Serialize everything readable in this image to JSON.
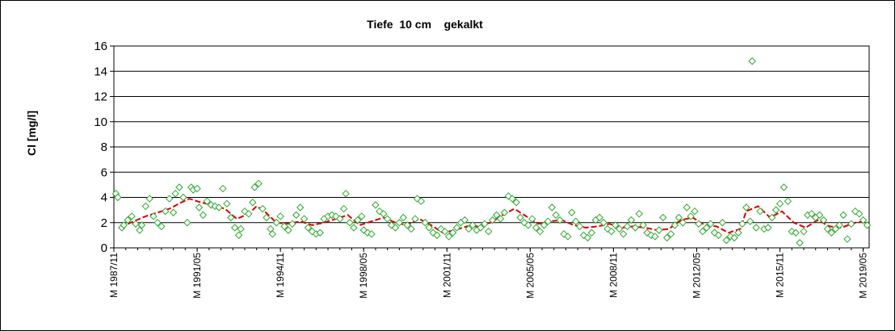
{
  "chart_data": {
    "type": "scatter",
    "title": "Tiefe  10 cm    gekalkt",
    "xlabel": "",
    "ylabel": "Cl [mg/l]",
    "ylim": [
      0,
      16
    ],
    "yticks": [
      0,
      2,
      4,
      6,
      8,
      10,
      12,
      14,
      16
    ],
    "xlim": [
      "1987-11",
      "2019-08"
    ],
    "xticks": [
      {
        "date": "1987-11",
        "label": "M 1987/11"
      },
      {
        "date": "1991-05",
        "label": "M 1991/05"
      },
      {
        "date": "1994-11",
        "label": "M 1994/11"
      },
      {
        "date": "1998-05",
        "label": "M 1998/05"
      },
      {
        "date": "2001-11",
        "label": "M 2001/11"
      },
      {
        "date": "2005-05",
        "label": "M 2005/05"
      },
      {
        "date": "2008-11",
        "label": "M 2008/11"
      },
      {
        "date": "2012-05",
        "label": "M 2012/05"
      },
      {
        "date": "2015-11",
        "label": "M 2015/11"
      },
      {
        "date": "2019-05",
        "label": "M 2019/05"
      }
    ],
    "grid": "horizontal",
    "legend": "none",
    "series": [
      {
        "style": "diamond markers",
        "color": "#2fa82f",
        "points": [
          [
            "1987-12",
            4.3
          ],
          [
            "1988-01",
            4.0
          ],
          [
            "1988-03",
            1.6
          ],
          [
            "1988-04",
            1.8
          ],
          [
            "1988-06",
            2.2
          ],
          [
            "1988-08",
            2.5
          ],
          [
            "1988-10",
            1.9
          ],
          [
            "1988-12",
            1.4
          ],
          [
            "1989-01",
            1.8
          ],
          [
            "1989-03",
            3.3
          ],
          [
            "1989-05",
            3.9
          ],
          [
            "1989-07",
            2.5
          ],
          [
            "1989-09",
            2.0
          ],
          [
            "1989-11",
            1.7
          ],
          [
            "1990-01",
            2.9
          ],
          [
            "1990-03",
            3.9
          ],
          [
            "1990-05",
            2.8
          ],
          [
            "1990-06",
            4.3
          ],
          [
            "1990-08",
            4.8
          ],
          [
            "1990-10",
            4.0
          ],
          [
            "1990-12",
            2.0
          ],
          [
            "1991-02",
            4.8
          ],
          [
            "1991-03",
            4.6
          ],
          [
            "1991-05",
            4.7
          ],
          [
            "1991-06",
            3.2
          ],
          [
            "1991-08",
            2.6
          ],
          [
            "1991-10",
            3.7
          ],
          [
            "1991-12",
            3.4
          ],
          [
            "1992-02",
            3.3
          ],
          [
            "1992-04",
            3.2
          ],
          [
            "1992-06",
            4.7
          ],
          [
            "1992-08",
            3.5
          ],
          [
            "1992-10",
            2.4
          ],
          [
            "1992-12",
            1.6
          ],
          [
            "1993-02",
            1.0
          ],
          [
            "1993-03",
            1.5
          ],
          [
            "1993-05",
            2.9
          ],
          [
            "1993-07",
            2.7
          ],
          [
            "1993-09",
            3.6
          ],
          [
            "1993-10",
            4.8
          ],
          [
            "1993-12",
            5.1
          ],
          [
            "1994-02",
            3.1
          ],
          [
            "1994-04",
            2.4
          ],
          [
            "1994-06",
            1.5
          ],
          [
            "1994-07",
            1.1
          ],
          [
            "1994-09",
            2.0
          ],
          [
            "1994-11",
            2.5
          ],
          [
            "1995-01",
            1.7
          ],
          [
            "1995-03",
            1.4
          ],
          [
            "1995-05",
            1.9
          ],
          [
            "1995-07",
            2.6
          ],
          [
            "1995-09",
            3.2
          ],
          [
            "1995-11",
            2.3
          ],
          [
            "1996-01",
            1.6
          ],
          [
            "1996-03",
            1.3
          ],
          [
            "1996-05",
            1.1
          ],
          [
            "1996-07",
            1.2
          ],
          [
            "1996-09",
            2.3
          ],
          [
            "1996-11",
            2.5
          ],
          [
            "1997-01",
            2.6
          ],
          [
            "1997-03",
            2.5
          ],
          [
            "1997-05",
            2.3
          ],
          [
            "1997-07",
            3.1
          ],
          [
            "1997-08",
            4.3
          ],
          [
            "1997-10",
            2.0
          ],
          [
            "1997-12",
            1.6
          ],
          [
            "1998-02",
            2.2
          ],
          [
            "1998-04",
            2.5
          ],
          [
            "1998-05",
            1.4
          ],
          [
            "1998-07",
            1.2
          ],
          [
            "1998-09",
            1.1
          ],
          [
            "1998-11",
            3.4
          ],
          [
            "1999-01",
            2.9
          ],
          [
            "1999-03",
            2.7
          ],
          [
            "1999-05",
            2.3
          ],
          [
            "1999-07",
            1.8
          ],
          [
            "1999-09",
            1.6
          ],
          [
            "1999-11",
            2.0
          ],
          [
            "2000-01",
            2.4
          ],
          [
            "2000-03",
            1.8
          ],
          [
            "2000-05",
            1.5
          ],
          [
            "2000-07",
            2.3
          ],
          [
            "2000-08",
            3.9
          ],
          [
            "2000-10",
            3.7
          ],
          [
            "2000-12",
            2.0
          ],
          [
            "2001-02",
            1.6
          ],
          [
            "2001-04",
            1.2
          ],
          [
            "2001-06",
            1.0
          ],
          [
            "2001-08",
            1.5
          ],
          [
            "2001-10",
            1.3
          ],
          [
            "2001-12",
            0.9
          ],
          [
            "2002-02",
            1.2
          ],
          [
            "2002-04",
            1.6
          ],
          [
            "2002-06",
            2.0
          ],
          [
            "2002-08",
            2.2
          ],
          [
            "2002-10",
            1.5
          ],
          [
            "2002-12",
            1.8
          ],
          [
            "2003-02",
            1.4
          ],
          [
            "2003-04",
            1.6
          ],
          [
            "2003-06",
            1.9
          ],
          [
            "2003-08",
            1.3
          ],
          [
            "2003-10",
            2.2
          ],
          [
            "2003-12",
            2.6
          ],
          [
            "2004-02",
            2.3
          ],
          [
            "2004-04",
            2.8
          ],
          [
            "2004-06",
            4.1
          ],
          [
            "2004-08",
            3.9
          ],
          [
            "2004-10",
            3.6
          ],
          [
            "2004-12",
            2.4
          ],
          [
            "2005-02",
            2.0
          ],
          [
            "2005-04",
            1.8
          ],
          [
            "2005-06",
            2.3
          ],
          [
            "2005-08",
            1.6
          ],
          [
            "2005-10",
            1.3
          ],
          [
            "2005-12",
            1.8
          ],
          [
            "2006-02",
            2.1
          ],
          [
            "2006-04",
            3.2
          ],
          [
            "2006-06",
            2.6
          ],
          [
            "2006-08",
            2.2
          ],
          [
            "2006-10",
            1.1
          ],
          [
            "2006-12",
            0.9
          ],
          [
            "2007-02",
            2.8
          ],
          [
            "2007-04",
            2.1
          ],
          [
            "2007-06",
            1.7
          ],
          [
            "2007-08",
            1.0
          ],
          [
            "2007-10",
            0.8
          ],
          [
            "2007-12",
            1.2
          ],
          [
            "2008-02",
            2.2
          ],
          [
            "2008-04",
            2.4
          ],
          [
            "2008-06",
            2.0
          ],
          [
            "2008-08",
            1.5
          ],
          [
            "2008-10",
            1.3
          ],
          [
            "2008-12",
            1.8
          ],
          [
            "2009-02",
            1.5
          ],
          [
            "2009-04",
            1.1
          ],
          [
            "2009-06",
            1.7
          ],
          [
            "2009-08",
            2.2
          ],
          [
            "2009-10",
            1.6
          ],
          [
            "2009-12",
            2.7
          ],
          [
            "2010-02",
            1.8
          ],
          [
            "2010-04",
            1.2
          ],
          [
            "2010-06",
            1.0
          ],
          [
            "2010-08",
            0.9
          ],
          [
            "2010-10",
            1.4
          ],
          [
            "2010-12",
            2.4
          ],
          [
            "2011-02",
            0.8
          ],
          [
            "2011-04",
            1.1
          ],
          [
            "2011-06",
            1.8
          ],
          [
            "2011-08",
            2.4
          ],
          [
            "2011-10",
            2.0
          ],
          [
            "2011-12",
            3.2
          ],
          [
            "2012-02",
            2.5
          ],
          [
            "2012-04",
            2.9
          ],
          [
            "2012-06",
            1.9
          ],
          [
            "2012-08",
            1.3
          ],
          [
            "2012-10",
            1.6
          ],
          [
            "2012-12",
            1.9
          ],
          [
            "2013-02",
            1.2
          ],
          [
            "2013-04",
            1.0
          ],
          [
            "2013-06",
            2.0
          ],
          [
            "2013-08",
            0.6
          ],
          [
            "2013-10",
            0.9
          ],
          [
            "2013-12",
            0.8
          ],
          [
            "2014-02",
            1.2
          ],
          [
            "2014-04",
            1.9
          ],
          [
            "2014-06",
            3.2
          ],
          [
            "2014-08",
            2.1
          ],
          [
            "2014-09",
            14.8
          ],
          [
            "2014-11",
            1.6
          ],
          [
            "2015-01",
            2.9
          ],
          [
            "2015-03",
            1.5
          ],
          [
            "2015-05",
            1.6
          ],
          [
            "2015-07",
            2.4
          ],
          [
            "2015-09",
            3.0
          ],
          [
            "2015-11",
            3.5
          ],
          [
            "2016-01",
            4.8
          ],
          [
            "2016-03",
            3.7
          ],
          [
            "2016-05",
            1.3
          ],
          [
            "2016-07",
            1.2
          ],
          [
            "2016-09",
            0.4
          ],
          [
            "2016-11",
            1.3
          ],
          [
            "2017-01",
            2.6
          ],
          [
            "2017-03",
            2.7
          ],
          [
            "2017-05",
            2.4
          ],
          [
            "2017-07",
            2.6
          ],
          [
            "2017-09",
            2.2
          ],
          [
            "2017-11",
            1.5
          ],
          [
            "2018-01",
            1.2
          ],
          [
            "2018-03",
            1.5
          ],
          [
            "2018-05",
            1.8
          ],
          [
            "2018-07",
            2.6
          ],
          [
            "2018-09",
            0.7
          ],
          [
            "2018-11",
            1.9
          ],
          [
            "2019-01",
            2.9
          ],
          [
            "2019-03",
            2.7
          ],
          [
            "2019-05",
            2.2
          ],
          [
            "2019-07",
            1.8
          ]
        ]
      },
      {
        "style": "moving average line",
        "color": "#dd0000",
        "points": [
          [
            "1988-06",
            1.9
          ],
          [
            "1989-03",
            2.5
          ],
          [
            "1989-09",
            2.8
          ],
          [
            "1990-03",
            3.1
          ],
          [
            "1990-09",
            3.6
          ],
          [
            "1991-01",
            3.9
          ],
          [
            "1991-07",
            3.6
          ],
          [
            "1992-01",
            3.4
          ],
          [
            "1992-07",
            3.1
          ],
          [
            "1993-01",
            2.3
          ],
          [
            "1993-07",
            2.7
          ],
          [
            "1993-11",
            3.3
          ],
          [
            "1994-03",
            2.9
          ],
          [
            "1994-09",
            2.0
          ],
          [
            "1995-03",
            1.9
          ],
          [
            "1995-09",
            2.1
          ],
          [
            "1996-03",
            1.8
          ],
          [
            "1996-09",
            2.0
          ],
          [
            "1997-03",
            2.3
          ],
          [
            "1997-09",
            2.6
          ],
          [
            "1998-03",
            1.8
          ],
          [
            "1998-09",
            2.1
          ],
          [
            "1999-03",
            2.4
          ],
          [
            "1999-09",
            2.0
          ],
          [
            "2000-03",
            1.8
          ],
          [
            "2000-09",
            2.3
          ],
          [
            "2001-03",
            1.8
          ],
          [
            "2001-09",
            1.2
          ],
          [
            "2002-03",
            1.4
          ],
          [
            "2002-09",
            1.7
          ],
          [
            "2003-03",
            1.7
          ],
          [
            "2003-09",
            2.0
          ],
          [
            "2004-03",
            2.6
          ],
          [
            "2004-09",
            3.1
          ],
          [
            "2005-03",
            2.5
          ],
          [
            "2005-09",
            1.9
          ],
          [
            "2006-03",
            2.1
          ],
          [
            "2006-09",
            2.2
          ],
          [
            "2007-03",
            1.8
          ],
          [
            "2007-09",
            1.6
          ],
          [
            "2008-03",
            1.7
          ],
          [
            "2008-09",
            1.9
          ],
          [
            "2009-03",
            1.6
          ],
          [
            "2009-09",
            1.7
          ],
          [
            "2010-03",
            1.6
          ],
          [
            "2010-09",
            1.4
          ],
          [
            "2011-03",
            1.5
          ],
          [
            "2011-09",
            2.2
          ],
          [
            "2012-03",
            2.4
          ],
          [
            "2012-09",
            1.8
          ],
          [
            "2013-03",
            1.7
          ],
          [
            "2013-09",
            1.2
          ],
          [
            "2014-03",
            1.5
          ],
          [
            "2014-06",
            2.9
          ],
          [
            "2014-12",
            3.3
          ],
          [
            "2015-06",
            2.4
          ],
          [
            "2015-12",
            2.9
          ],
          [
            "2016-06",
            2.0
          ],
          [
            "2016-12",
            1.6
          ],
          [
            "2017-06",
            2.2
          ],
          [
            "2017-12",
            1.7
          ],
          [
            "2018-06",
            1.6
          ],
          [
            "2019-01",
            2.0
          ],
          [
            "2019-06",
            2.1
          ]
        ]
      }
    ]
  }
}
